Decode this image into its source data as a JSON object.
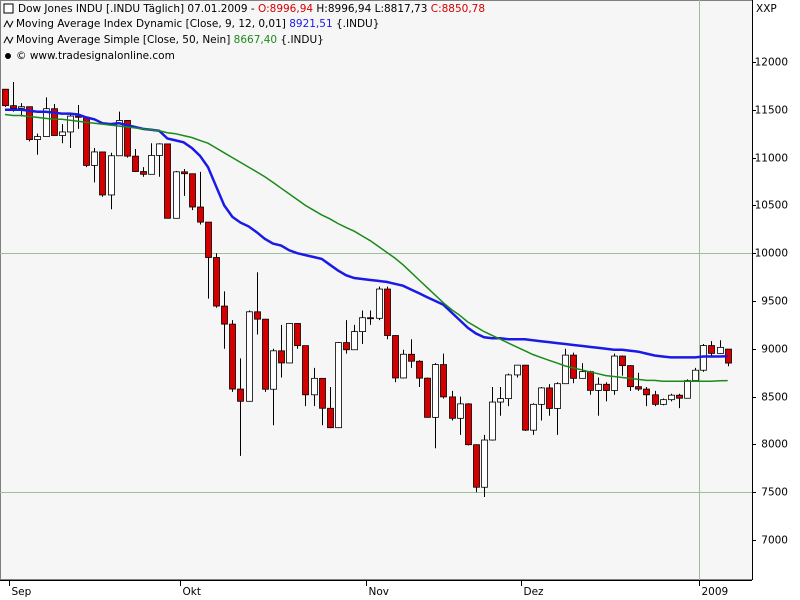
{
  "chart_data": {
    "type": "candlestick",
    "title": "Dow Jones INDU [.INDU  Täglich] 07.01.2009 -",
    "ohlc_labels": [
      {
        "text": "O:8996,94",
        "color": "#d40000"
      },
      {
        "text": "H:8996,94 L:8817,73",
        "color": "#000000"
      },
      {
        "text": "C:8850,78",
        "color": "#d40000"
      }
    ],
    "source": "© www.tradesignalonline.com",
    "corner_label": "XXP",
    "up_color": "#ffffff",
    "down_color": "#d40000",
    "categories": [
      null,
      "Sep",
      null,
      null,
      null,
      null,
      null,
      null,
      null,
      null,
      null,
      null,
      null,
      null,
      null,
      null,
      null,
      null,
      null,
      null,
      null,
      null,
      "Okt",
      null,
      null,
      null,
      null,
      null,
      null,
      null,
      null,
      null,
      null,
      null,
      null,
      null,
      null,
      null,
      null,
      null,
      null,
      null,
      null,
      null,
      null,
      "Nov",
      null,
      null,
      null,
      null,
      null,
      null,
      null,
      null,
      null,
      null,
      null,
      null,
      null,
      null,
      null,
      null,
      null,
      null,
      "Dez",
      null,
      null,
      null,
      null,
      null,
      null,
      null,
      null,
      null,
      null,
      null,
      null,
      null,
      null,
      null,
      null,
      null,
      null,
      null,
      null,
      null,
      "2009",
      null,
      null,
      null
    ],
    "open": [
      11715,
      11543,
      11516,
      11532,
      11188,
      11220,
      11511,
      11231,
      11268,
      11434,
      11421,
      10918,
      11059,
      10609,
      11019,
      11388,
      11015,
      10854,
      10825,
      11022,
      11143,
      10365,
      10851,
      10831,
      10483,
      10325,
      9955,
      9447,
      9258,
      8579,
      8451,
      9387,
      9310,
      8577,
      8979,
      8852,
      9265,
      9033,
      8519,
      8691,
      8378,
      8175,
      9065,
      8990,
      9180,
      9325,
      9319,
      9625,
      9139,
      8695,
      8943,
      8870,
      8693,
      8283,
      8835,
      8497,
      8273,
      8424,
      7997,
      7552,
      8046,
      8443,
      8479,
      8727,
      8829,
      8149,
      8419,
      8591,
      8376,
      8635,
      8934,
      8691,
      8761,
      8565,
      8629,
      8564,
      8924,
      8824,
      8604,
      8579,
      8519,
      8419,
      8468,
      8515,
      8483,
      8668,
      8776,
      9034,
      8952,
      8996.94
    ],
    "high": [
      11715,
      11790,
      11570,
      11532,
      11250,
      11630,
      11560,
      11350,
      11460,
      11550,
      11421,
      11100,
      11059,
      11050,
      11480,
      11390,
      11090,
      10900,
      11150,
      11150,
      11143,
      10860,
      10880,
      10831,
      10850,
      10325,
      10000,
      9600,
      9300,
      8900,
      9400,
      9800,
      9310,
      9000,
      9250,
      9270,
      9270,
      9033,
      8800,
      8691,
      8600,
      9070,
      9300,
      9250,
      9400,
      9400,
      9650,
      9650,
      9140,
      8990,
      9100,
      8880,
      8700,
      8850,
      8950,
      8560,
      8500,
      8430,
      8000,
      8100,
      8600,
      8600,
      8740,
      8830,
      8829,
      8430,
      8600,
      8630,
      8650,
      9000,
      8960,
      8850,
      8770,
      8700,
      8650,
      8950,
      8930,
      8830,
      8750,
      8600,
      8560,
      8480,
      8530,
      8530,
      8680,
      8800,
      9050,
      9080,
      9090,
      8996.94
    ],
    "low": [
      11530,
      11480,
      11430,
      11170,
      11030,
      11220,
      11230,
      11150,
      11100,
      11300,
      10900,
      10740,
      10590,
      10460,
      11019,
      11000,
      10850,
      10800,
      10825,
      10800,
      10365,
      10365,
      10600,
      10450,
      10300,
      9525,
      9430,
      9000,
      8550,
      7880,
      8451,
      9150,
      8550,
      8200,
      8700,
      8850,
      9000,
      8400,
      8400,
      8200,
      8170,
      8170,
      8950,
      8990,
      9050,
      9250,
      9300,
      9100,
      8650,
      8690,
      8800,
      8600,
      8280,
      7960,
      8480,
      8250,
      8100,
      7990,
      7500,
      7450,
      8040,
      8300,
      8400,
      8700,
      8140,
      8100,
      8250,
      8300,
      8100,
      8635,
      8640,
      8690,
      8520,
      8300,
      8450,
      8520,
      8720,
      8560,
      8560,
      8400,
      8400,
      8410,
      8450,
      8380,
      8480,
      8660,
      8760,
      8930,
      8950,
      8817.73
    ],
    "close": [
      11543,
      11516,
      11532,
      11188,
      11220,
      11511,
      11231,
      11268,
      11434,
      11421,
      10918,
      11059,
      10609,
      11019,
      11388,
      11015,
      10854,
      10825,
      11022,
      11143,
      10365,
      10851,
      10831,
      10483,
      10325,
      9955,
      9447,
      9258,
      8579,
      8451,
      9387,
      9310,
      8577,
      8979,
      8852,
      9265,
      9033,
      8519,
      8691,
      8378,
      8175,
      9065,
      8990,
      9180,
      9325,
      9319,
      9625,
      9139,
      8695,
      8943,
      8870,
      8693,
      8283,
      8835,
      8497,
      8273,
      8424,
      7997,
      7552,
      8046,
      8443,
      8479,
      8727,
      8829,
      8149,
      8419,
      8591,
      8376,
      8635,
      8934,
      8691,
      8761,
      8565,
      8629,
      8564,
      8924,
      8824,
      8604,
      8579,
      8519,
      8419,
      8468,
      8515,
      8483,
      8668,
      8776,
      9034,
      8952,
      9015,
      8850.78
    ],
    "series": [
      {
        "name": "Moving Average Index Dynamic [Close, 9, 12, 0,01]",
        "last_label": "8921,51",
        "symbol": "{.INDU}",
        "color": "#1a1ae6",
        "values": [
          11500,
          11500,
          11500,
          11490,
          11480,
          11480,
          11470,
          11460,
          11460,
          11450,
          11420,
          11400,
          11360,
          11350,
          11360,
          11340,
          11320,
          11300,
          11290,
          11280,
          11200,
          11180,
          11160,
          11100,
          11020,
          10900,
          10700,
          10500,
          10380,
          10320,
          10280,
          10220,
          10150,
          10100,
          10080,
          10030,
          10000,
          9980,
          9960,
          9940,
          9880,
          9820,
          9770,
          9740,
          9730,
          9720,
          9710,
          9700,
          9680,
          9660,
          9620,
          9580,
          9540,
          9500,
          9460,
          9380,
          9300,
          9220,
          9160,
          9120,
          9110,
          9110,
          9100,
          9100,
          9100,
          9090,
          9080,
          9070,
          9060,
          9050,
          9040,
          9030,
          9020,
          9010,
          9000,
          8990,
          8990,
          8980,
          8970,
          8950,
          8930,
          8920,
          8910,
          8910,
          8910,
          8910,
          8920,
          8920,
          8920,
          8921.51
        ]
      },
      {
        "name": "Moving Average Simple [Close, 50, Nein]",
        "last_label": "8667,40",
        "symbol": "{.INDU}",
        "color": "#1a8a1a",
        "values": [
          11450,
          11440,
          11440,
          11430,
          11420,
          11410,
          11400,
          11400,
          11390,
          11380,
          11370,
          11360,
          11350,
          11340,
          11330,
          11320,
          11310,
          11300,
          11290,
          11280,
          11260,
          11250,
          11230,
          11210,
          11180,
          11150,
          11100,
          11050,
          11000,
          10950,
          10900,
          10850,
          10800,
          10740,
          10680,
          10620,
          10560,
          10500,
          10450,
          10400,
          10360,
          10310,
          10270,
          10230,
          10180,
          10130,
          10070,
          10010,
          9950,
          9880,
          9800,
          9720,
          9640,
          9560,
          9480,
          9410,
          9350,
          9280,
          9230,
          9180,
          9140,
          9100,
          9060,
          9020,
          8980,
          8940,
          8910,
          8880,
          8850,
          8820,
          8800,
          8780,
          8760,
          8740,
          8720,
          8710,
          8700,
          8690,
          8680,
          8670,
          8670,
          8660,
          8660,
          8660,
          8660,
          8660,
          8660,
          8660,
          8665,
          8667.4
        ]
      }
    ],
    "ylim": [
      6582,
      12648
    ],
    "yticks": [
      7000,
      7500,
      8000,
      8500,
      9000,
      9500,
      10000,
      10500,
      11000,
      11500,
      12000
    ],
    "grid_y": [
      7500,
      10000
    ],
    "grid_x": [
      86
    ]
  }
}
